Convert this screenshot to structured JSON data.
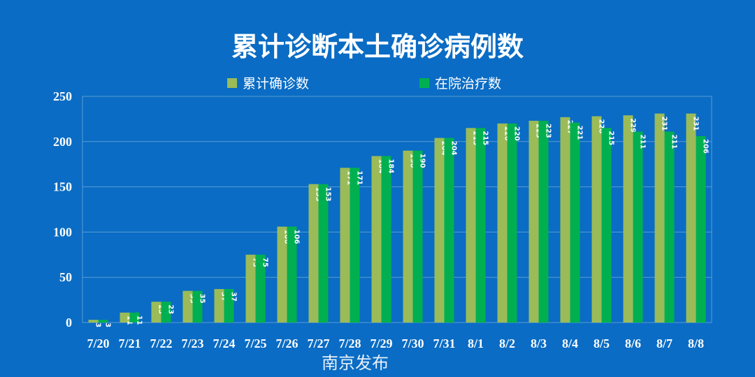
{
  "chart_data": {
    "type": "bar",
    "title": "累计诊断本土确诊病例数",
    "categories": [
      "7/20",
      "7/21",
      "7/22",
      "7/23",
      "7/24",
      "7/25",
      "7/26",
      "7/27",
      "7/28",
      "7/29",
      "7/30",
      "7/31",
      "8/1",
      "8/2",
      "8/3",
      "8/4",
      "8/5",
      "8/6",
      "8/7",
      "8/8"
    ],
    "series": [
      {
        "name": "累计确诊数",
        "color": "#9bbb59",
        "values": [
          3,
          11,
          23,
          35,
          37,
          75,
          106,
          153,
          171,
          184,
          190,
          204,
          215,
          220,
          223,
          227,
          228,
          229,
          231,
          231
        ]
      },
      {
        "name": "在院治疗数",
        "color": "#00b050",
        "values": [
          3,
          11,
          23,
          35,
          37,
          75,
          106,
          153,
          171,
          184,
          190,
          204,
          215,
          220,
          223,
          221,
          215,
          211,
          211,
          206
        ]
      }
    ],
    "ylim": [
      0,
      250
    ],
    "yticks": [
      0,
      50,
      100,
      150,
      200,
      250
    ],
    "grid": true,
    "legend": "top"
  },
  "watermark": "南京发布"
}
